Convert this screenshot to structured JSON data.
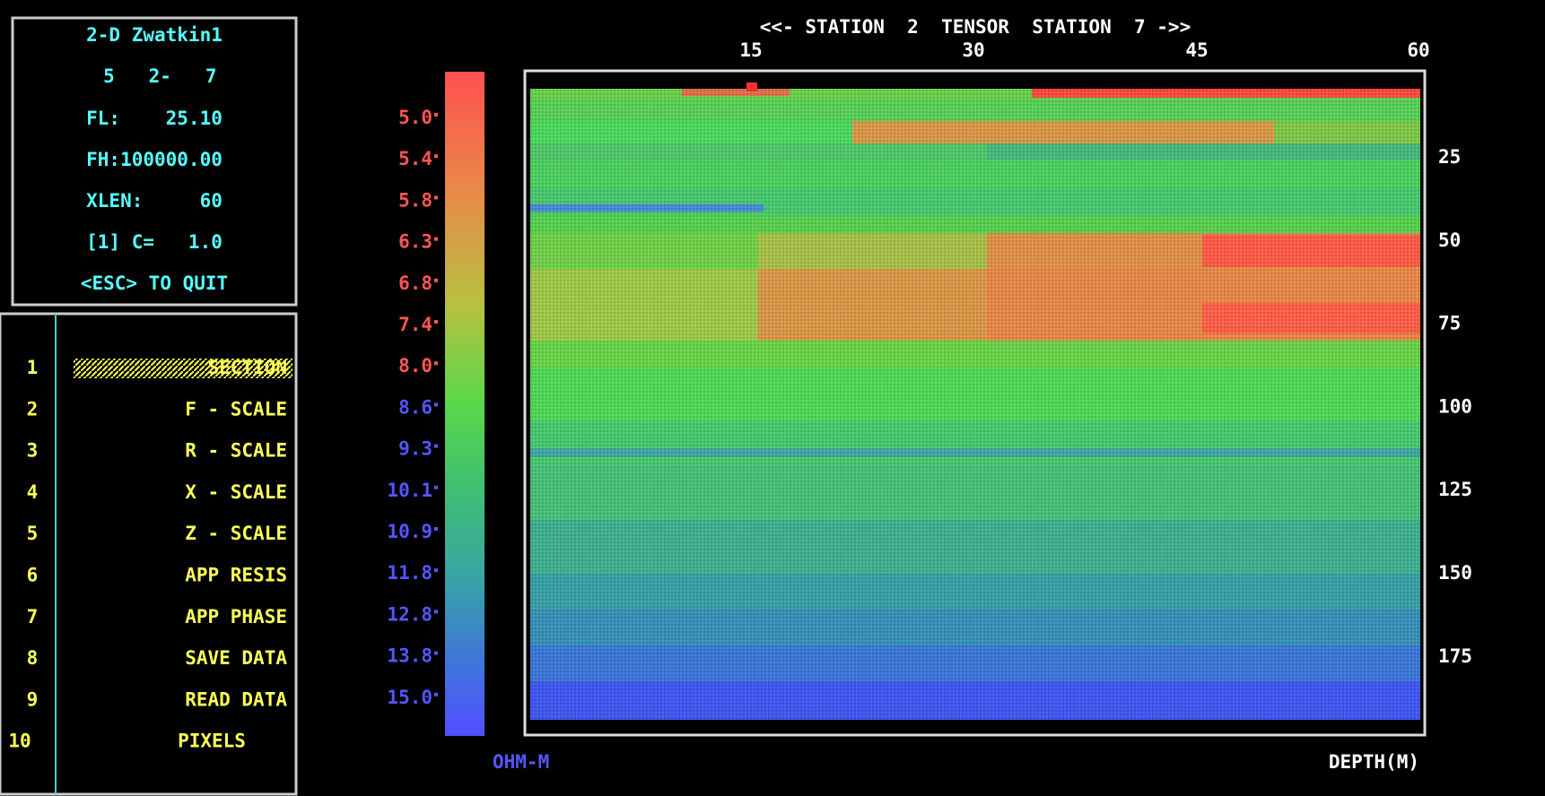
{
  "header": "<<- STATION  2  TENSOR  STATION  7 ->>",
  "info": [
    "2-D Zwatkin1",
    " 5   2-   7",
    "FL:    25.10",
    "FH:100000.00",
    "XLEN:     60",
    "[1] C=   1.0",
    "<ESC> TO QUIT"
  ],
  "menu": [
    {
      "key": "1",
      "label": "SECTION"
    },
    {
      "key": "2",
      "label": "F - SCALE"
    },
    {
      "key": "3",
      "label": "R - SCALE"
    },
    {
      "key": "4",
      "label": "X - SCALE"
    },
    {
      "key": "5",
      "label": "Z - SCALE"
    },
    {
      "key": "6",
      "label": "APP RESIS"
    },
    {
      "key": "7",
      "label": "APP PHASE"
    },
    {
      "key": "8",
      "label": "SAVE DATA"
    },
    {
      "key": "9",
      "label": "READ DATA"
    },
    {
      "key": "10",
      "label": "PIXELS"
    }
  ],
  "color_scale": {
    "labels": [
      "5.0",
      "5.4",
      "5.8",
      "6.3",
      "6.8",
      "7.4",
      "8.0",
      "8.6",
      "9.3",
      "10.1",
      "10.9",
      "11.8",
      "12.8",
      "13.8",
      "15.0"
    ],
    "unit": "OHM-M"
  },
  "x_ticks": [
    15,
    30,
    45,
    60
  ],
  "depth_ticks": [
    25,
    50,
    75,
    100,
    125,
    150,
    175
  ],
  "depth_label": "DEPTH(M)"
}
